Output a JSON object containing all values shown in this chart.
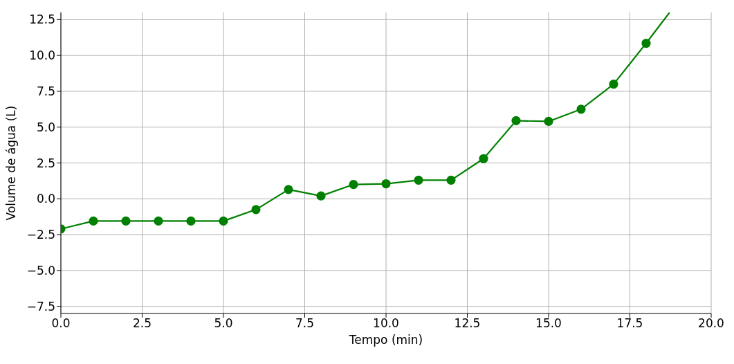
{
  "chart_data": {
    "type": "line",
    "xlabel": "Tempo (min)",
    "ylabel": "Volume de água (L)",
    "x": [
      0,
      1,
      2,
      3,
      4,
      5,
      6,
      7,
      8,
      9,
      10,
      11,
      12,
      13,
      14,
      15,
      16,
      17,
      18
    ],
    "series": [
      {
        "color": "#008000",
        "values": [
          -2.1,
          -1.55,
          -1.55,
          -1.55,
          -1.55,
          -1.55,
          -0.75,
          0.65,
          0.2,
          1.0,
          1.05,
          1.3,
          1.3,
          2.8,
          5.45,
          5.4,
          6.25,
          8.0,
          10.85
        ]
      },
      {
        "color": "#008000",
        "marker": "none",
        "x": [
          18,
          18.72
        ],
        "values": [
          10.85,
          13
        ]
      }
    ],
    "xlim": [
      0,
      20
    ],
    "xticks": [
      {
        "value": 0,
        "label": "0.0"
      },
      {
        "value": 2.5,
        "label": "2.5"
      },
      {
        "value": 5,
        "label": "5.0"
      },
      {
        "value": 7.5,
        "label": "7.5"
      },
      {
        "value": 10,
        "label": "10.0"
      },
      {
        "value": 12.5,
        "label": "12.5"
      },
      {
        "value": 15,
        "label": "15.0"
      },
      {
        "value": 17.5,
        "label": "17.5"
      },
      {
        "value": 20,
        "label": "20.0"
      }
    ],
    "ylim": [
      -8,
      13
    ],
    "yticks": [
      {
        "value": -7.5,
        "label": "−7.5"
      },
      {
        "value": -5,
        "label": "−5.0"
      },
      {
        "value": -2.5,
        "label": "−2.5"
      },
      {
        "value": 0,
        "label": "0.0"
      },
      {
        "value": 2.5,
        "label": "2.5"
      },
      {
        "value": 5,
        "label": "5.0"
      },
      {
        "value": 7.5,
        "label": "7.5"
      },
      {
        "value": 10,
        "label": "10.0"
      },
      {
        "value": 12.5,
        "label": "12.5"
      }
    ],
    "grid": true,
    "marker": "circle",
    "line_style": "solid"
  }
}
